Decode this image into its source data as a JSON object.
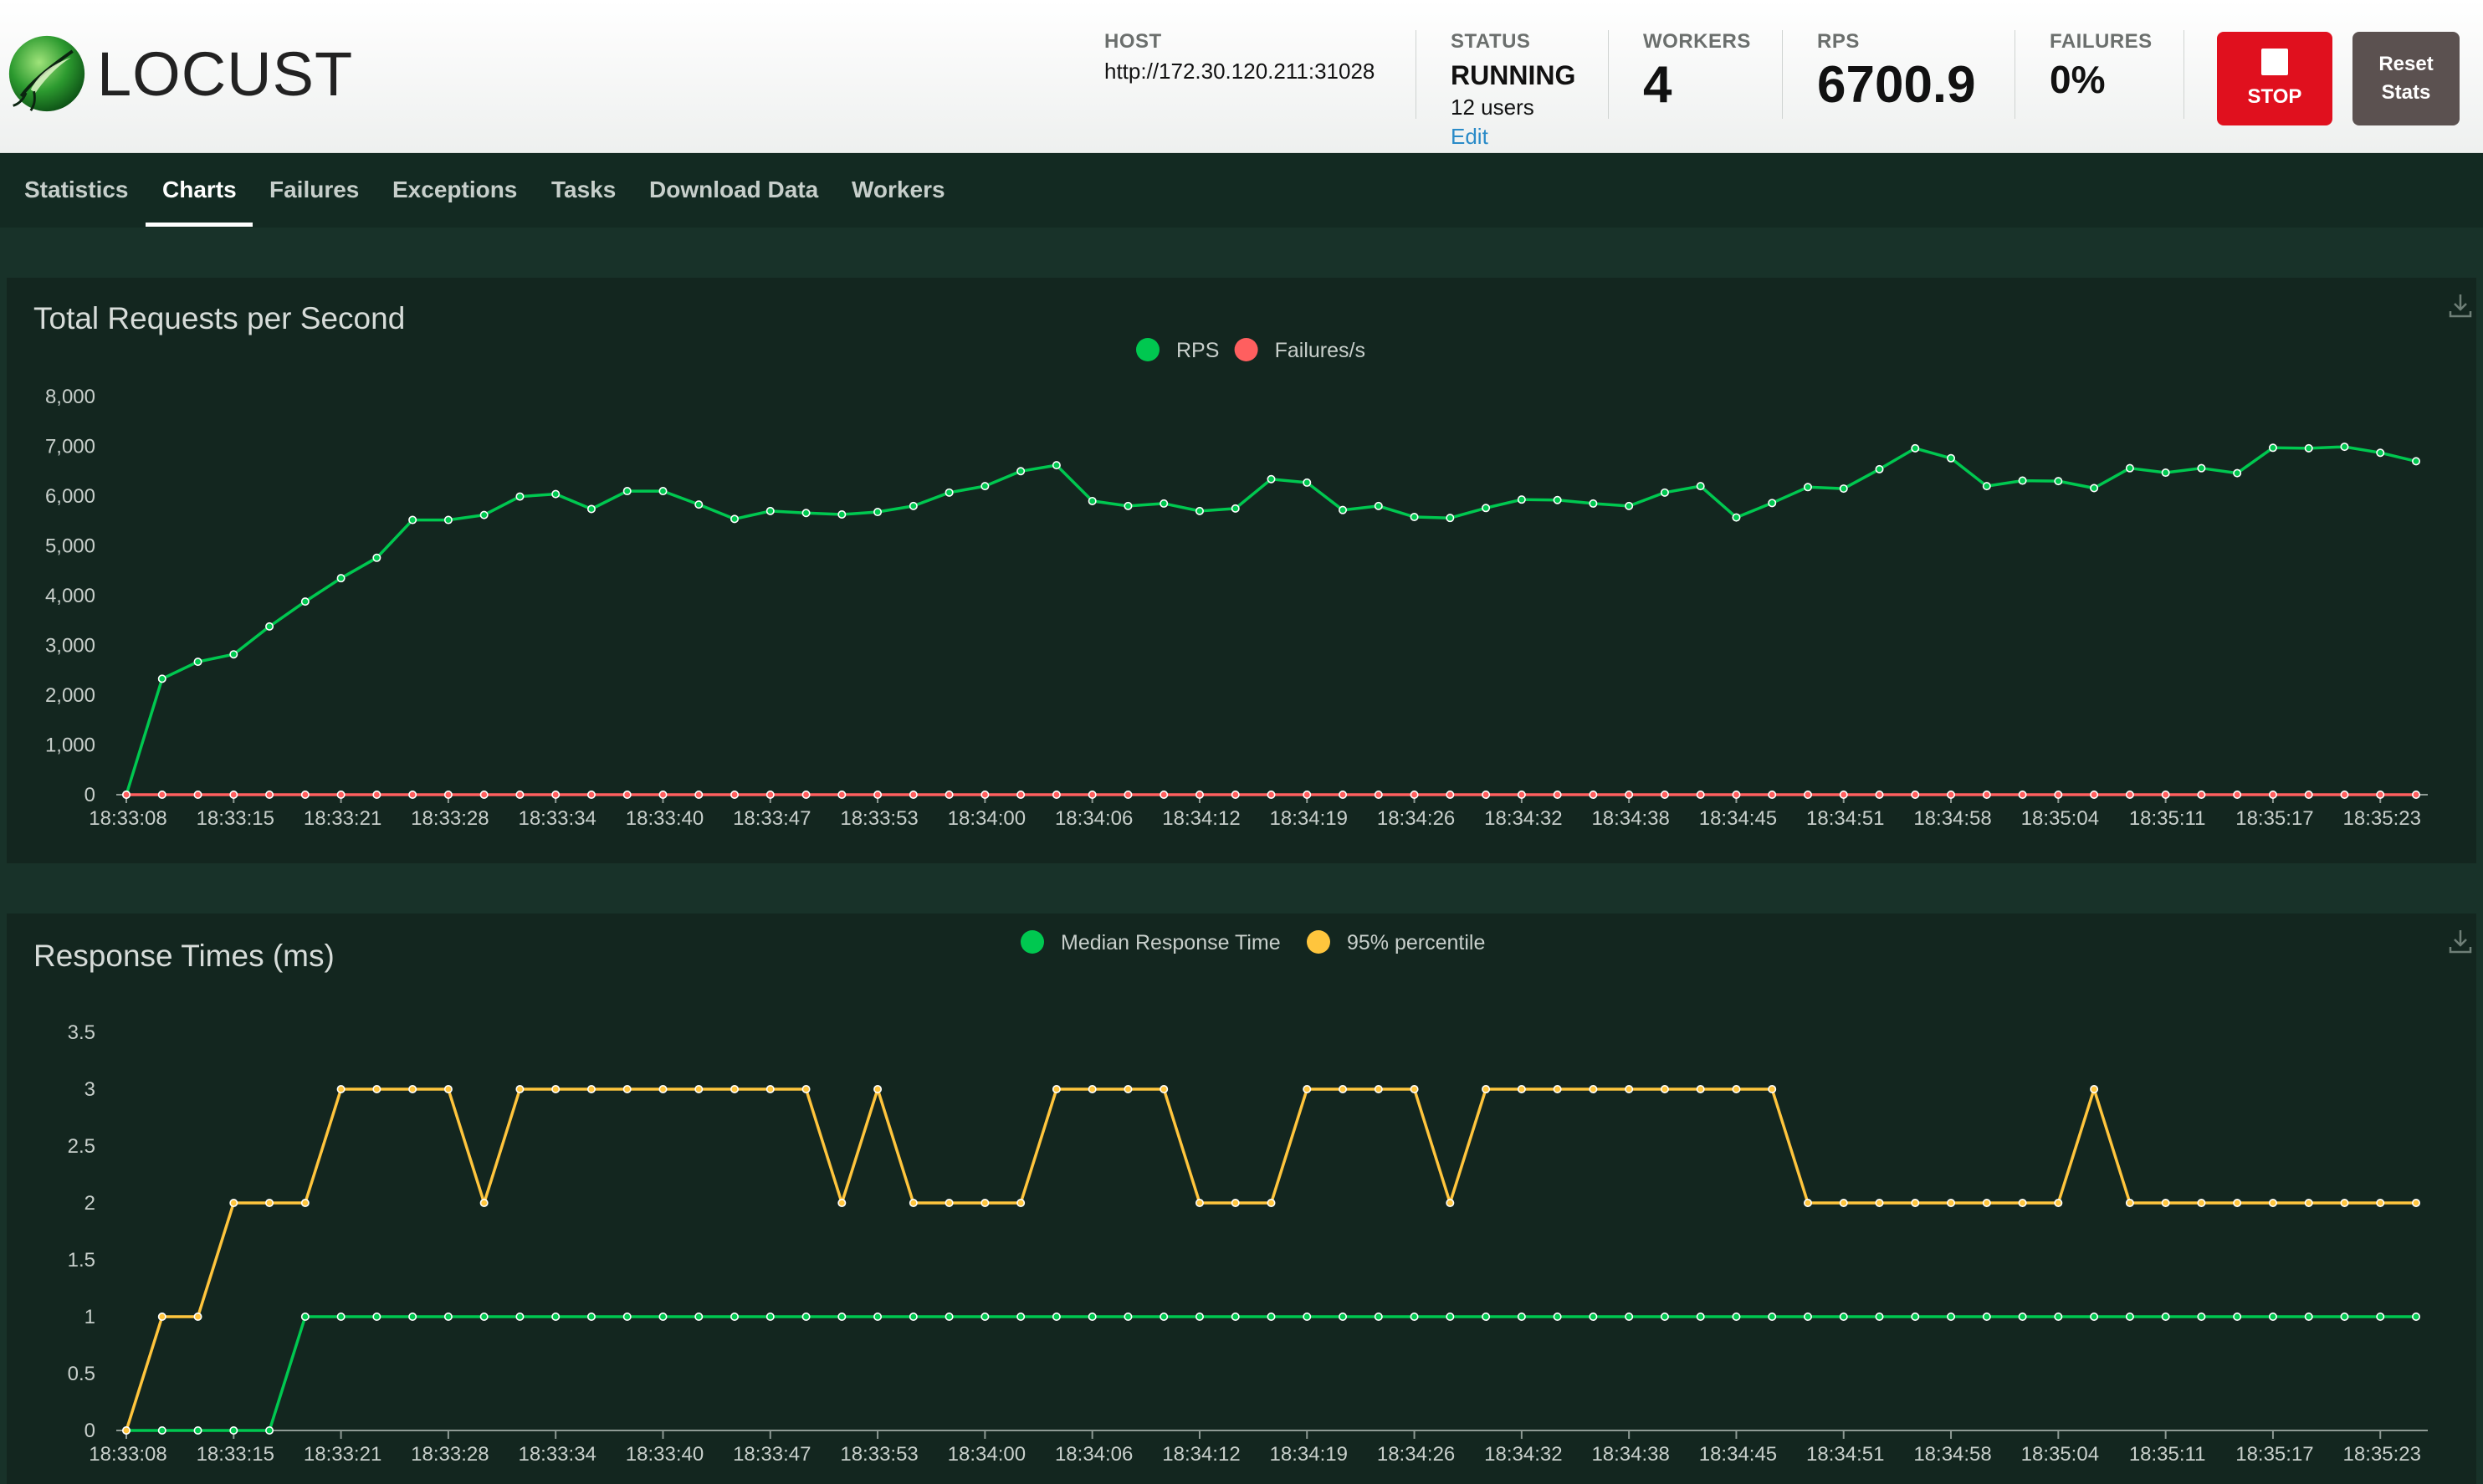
{
  "app": {
    "logo_text": "LOCUST"
  },
  "header": {
    "host": {
      "label": "HOST",
      "value": "http://172.30.120.211:31028"
    },
    "status": {
      "label": "STATUS",
      "value": "RUNNING",
      "users": "12 users",
      "edit": "Edit"
    },
    "workers": {
      "label": "WORKERS",
      "value": "4"
    },
    "rps": {
      "label": "RPS",
      "value": "6700.9"
    },
    "failures": {
      "label": "FAILURES",
      "value": "0%"
    },
    "stop_label": "STOP",
    "reset_label": "Reset Stats"
  },
  "nav": {
    "tabs": [
      {
        "label": "Statistics",
        "active": false
      },
      {
        "label": "Charts",
        "active": true
      },
      {
        "label": "Failures",
        "active": false
      },
      {
        "label": "Exceptions",
        "active": false
      },
      {
        "label": "Tasks",
        "active": false
      },
      {
        "label": "Download Data",
        "active": false
      },
      {
        "label": "Workers",
        "active": false
      }
    ]
  },
  "icons": [
    "locust-logo-icon",
    "stop-icon",
    "download-icon"
  ],
  "colors": {
    "rps": "#00c850",
    "failures": "#ff5f5f",
    "median": "#00c850",
    "p95": "#ffc53d",
    "stop_button": "#e0101e",
    "reset_button": "#5b5150"
  },
  "chart_data": [
    {
      "type": "line",
      "title": "Total Requests per Second",
      "xlabel": "",
      "ylabel": "",
      "ylim": [
        0,
        8000
      ],
      "yticks": [
        "0",
        "1,000",
        "2,000",
        "3,000",
        "4,000",
        "5,000",
        "6,000",
        "7,000",
        "8,000"
      ],
      "xtick_labels": [
        "18:33:08",
        "18:33:15",
        "18:33:21",
        "18:33:28",
        "18:33:34",
        "18:33:40",
        "18:33:47",
        "18:33:53",
        "18:34:00",
        "18:34:06",
        "18:34:12",
        "18:34:19",
        "18:34:26",
        "18:34:32",
        "18:34:38",
        "18:34:45",
        "18:34:51",
        "18:34:58",
        "18:35:04",
        "18:35:11",
        "18:35:17",
        "18:35:23"
      ],
      "legend_position": "top-center",
      "grid": false,
      "series": [
        {
          "name": "RPS",
          "color": "#00c850",
          "values": [
            0,
            2330,
            2670,
            2820,
            3380,
            3880,
            4350,
            4760,
            5520,
            5520,
            5620,
            5990,
            6040,
            5740,
            6100,
            6100,
            5830,
            5540,
            5700,
            5660,
            5630,
            5680,
            5800,
            6070,
            6200,
            6500,
            6620,
            5900,
            5800,
            5850,
            5700,
            5750,
            6340,
            6270,
            5720,
            5800,
            5580,
            5560,
            5760,
            5930,
            5920,
            5850,
            5800,
            6070,
            6200,
            5570,
            5860,
            6180,
            6150,
            6540,
            6960,
            6760,
            6200,
            6310,
            6300,
            6160,
            6560,
            6470,
            6560,
            6460,
            6970,
            6960,
            6990,
            6870,
            6700
          ]
        },
        {
          "name": "Failures/s",
          "color": "#ff5f5f",
          "values": [
            0,
            0,
            0,
            0,
            0,
            0,
            0,
            0,
            0,
            0,
            0,
            0,
            0,
            0,
            0,
            0,
            0,
            0,
            0,
            0,
            0,
            0,
            0,
            0,
            0,
            0,
            0,
            0,
            0,
            0,
            0,
            0,
            0,
            0,
            0,
            0,
            0,
            0,
            0,
            0,
            0,
            0,
            0,
            0,
            0,
            0,
            0,
            0,
            0,
            0,
            0,
            0,
            0,
            0,
            0,
            0,
            0,
            0,
            0,
            0,
            0,
            0,
            0,
            0,
            0
          ]
        }
      ]
    },
    {
      "type": "line",
      "title": "Response Times (ms)",
      "xlabel": "",
      "ylabel": "",
      "ylim": [
        0,
        3.5
      ],
      "yticks": [
        "0",
        "0.5",
        "1",
        "1.5",
        "2",
        "2.5",
        "3",
        "3.5"
      ],
      "xtick_labels": [
        "18:33:08",
        "18:33:15",
        "18:33:21",
        "18:33:28",
        "18:33:34",
        "18:33:40",
        "18:33:47",
        "18:33:53",
        "18:34:00",
        "18:34:06",
        "18:34:12",
        "18:34:19",
        "18:34:26",
        "18:34:32",
        "18:34:38",
        "18:34:45",
        "18:34:51",
        "18:34:58",
        "18:35:04",
        "18:35:11",
        "18:35:17",
        "18:35:23"
      ],
      "legend_position": "top-center",
      "grid": false,
      "series": [
        {
          "name": "Median Response Time",
          "color": "#00c850",
          "values": [
            0,
            0,
            0,
            0,
            0,
            1,
            1,
            1,
            1,
            1,
            1,
            1,
            1,
            1,
            1,
            1,
            1,
            1,
            1,
            1,
            1,
            1,
            1,
            1,
            1,
            1,
            1,
            1,
            1,
            1,
            1,
            1,
            1,
            1,
            1,
            1,
            1,
            1,
            1,
            1,
            1,
            1,
            1,
            1,
            1,
            1,
            1,
            1,
            1,
            1,
            1,
            1,
            1,
            1,
            1,
            1,
            1,
            1,
            1,
            1,
            1,
            1,
            1,
            1,
            1
          ]
        },
        {
          "name": "95% percentile",
          "color": "#ffc53d",
          "values": [
            0,
            1,
            1,
            2,
            2,
            2,
            3,
            3,
            3,
            3,
            2,
            3,
            3,
            3,
            3,
            3,
            3,
            3,
            3,
            3,
            2,
            3,
            2,
            2,
            2,
            2,
            3,
            3,
            3,
            3,
            2,
            2,
            2,
            3,
            3,
            3,
            3,
            2,
            3,
            3,
            3,
            3,
            3,
            3,
            3,
            3,
            3,
            2,
            2,
            2,
            2,
            2,
            2,
            2,
            2,
            3,
            2,
            2,
            2,
            2,
            2,
            2,
            2,
            2,
            2
          ]
        }
      ]
    }
  ]
}
